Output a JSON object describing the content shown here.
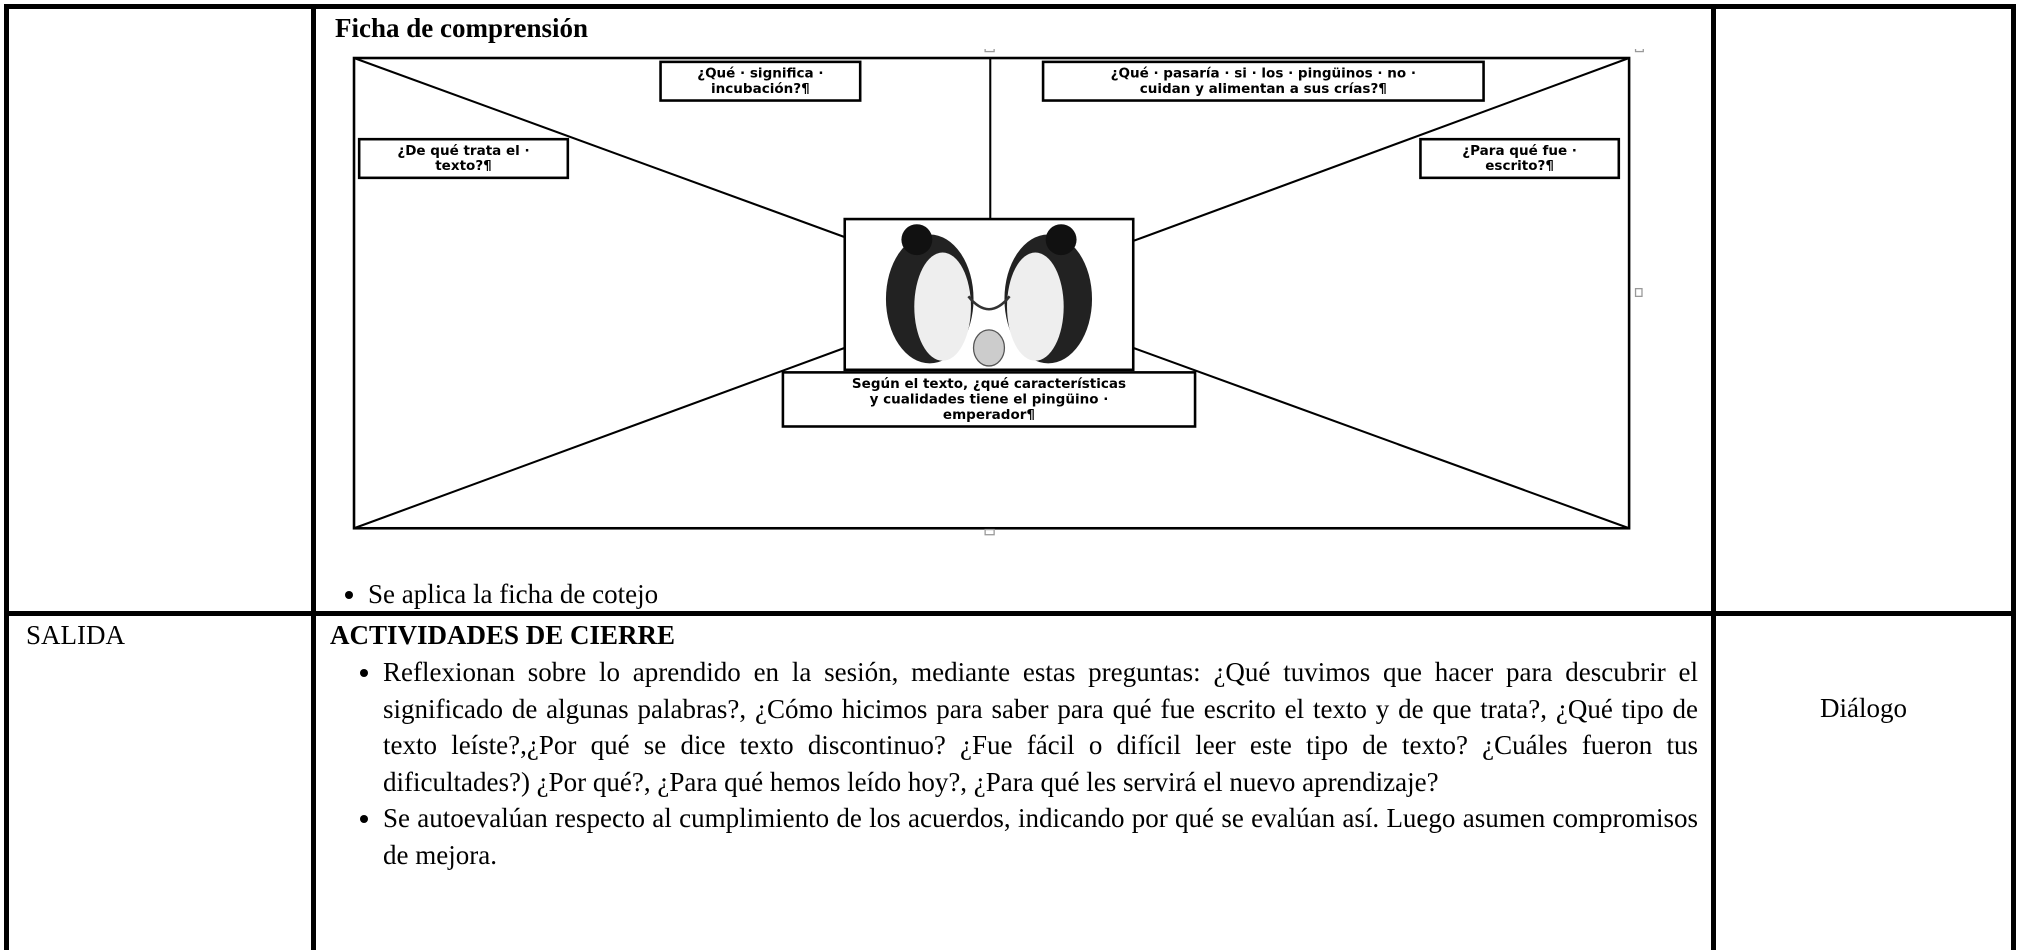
{
  "top_row": {
    "heading": "Ficha de comprensión",
    "diagram": {
      "questions": [
        {
          "lines": [
            "¿Qué · significa ·",
            "incubación?¶"
          ]
        },
        {
          "lines": [
            "¿Qué · pasaría · si · los · pingüinos · no ·",
            "cuidan y alimentan a sus crías?¶"
          ]
        },
        {
          "lines": [
            "¿De qué trata el ·",
            "texto?¶"
          ]
        },
        {
          "lines": [
            "¿Para qué fue ·",
            "escrito?¶"
          ]
        },
        {
          "lines": [
            "Según el texto, ¿qué características",
            "y cualidades tiene el pingüino ·",
            "emperador¶"
          ]
        }
      ]
    },
    "bullets": [
      "Se aplica la ficha de cotejo"
    ]
  },
  "bottom_row": {
    "stage": "SALIDA",
    "heading": "ACTIVIDADES DE CIERRE",
    "bullets": [
      "Reflexionan sobre lo aprendido en la sesión, mediante estas preguntas: ¿Qué tuvimos que hacer para descubrir el significado de algunas palabras?, ¿Cómo hicimos para saber para qué fue escrito el texto y de que trata?, ¿Qué tipo de texto leíste?,¿Por qué se dice texto discontinuo? ¿Fue fácil o difícil leer este tipo de texto? ¿Cuáles fueron tus dificultades?) ¿Por qué?, ¿Para qué hemos leído hoy?, ¿Para qué les servirá el nuevo aprendizaje?",
      "Se autoevalúan respecto al cumplimiento de los acuerdos, indicando por qué se evalúan así. Luego asumen compromisos de mejora."
    ],
    "resource": "Diálogo"
  }
}
